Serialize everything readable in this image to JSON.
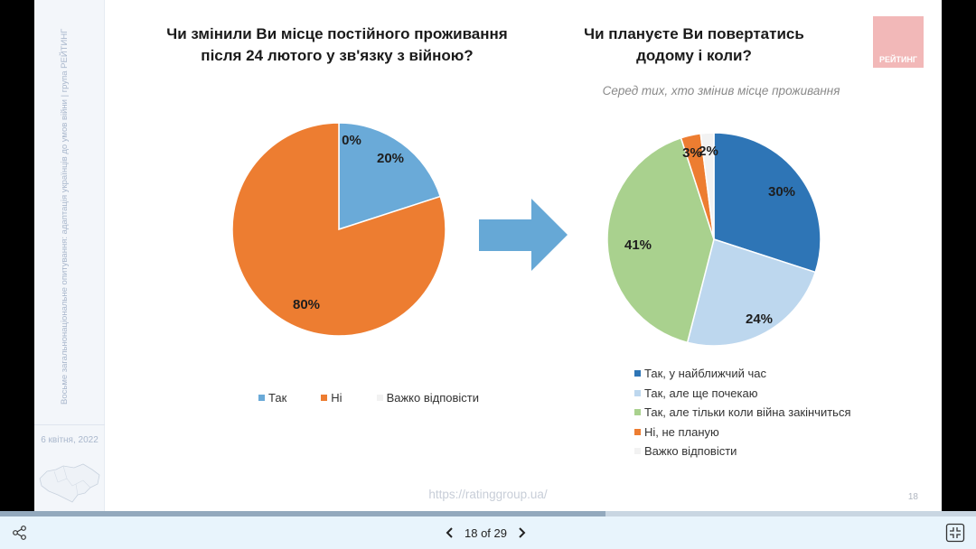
{
  "slide": {
    "sidebar": {
      "vertical_text": "Восьме загальнонаціональне опитування: адаптація українців до умов війни | група РЕЙТИНГ",
      "date": "6 квітня, 2022"
    },
    "logo_text": "РЕЙТИНГ",
    "left_title_line1": "Чи змінили Ви місце постійного проживання",
    "left_title_line2": "після  24 лютого у зв'язку з війною?",
    "right_title_line1": "Чи плануєте Ви повертатись",
    "right_title_line2": "додому і коли?",
    "right_subtitle": "Серед тих, хто змінив місце проживання",
    "footer_url": "https://ratinggroup.ua/",
    "page_number": "18"
  },
  "chart_data": [
    {
      "type": "pie",
      "title": "Чи змінили Ви місце постійного проживання після 24 лютого у зв'язку з війною?",
      "categories": [
        "Так",
        "Ні",
        "Важко відповісти"
      ],
      "values": [
        20,
        80,
        0
      ],
      "labels": [
        "20%",
        "80%",
        "0%"
      ],
      "colors": [
        "#6aaad8",
        "#ed7d31",
        "#f2f2f2"
      ],
      "legend_position": "bottom"
    },
    {
      "type": "pie",
      "title": "Чи плануєте Ви повертатись додому і коли?",
      "subtitle": "Серед тих, хто змінив місце проживання",
      "categories": [
        "Так, у найближчий час",
        "Так, але ще почекаю",
        "Так, але тільки коли війна закінчиться",
        "Ні, не планую",
        "Важко відповісти"
      ],
      "values": [
        30,
        24,
        41,
        3,
        2
      ],
      "labels": [
        "30%",
        "24%",
        "41%",
        "3%",
        "2%"
      ],
      "colors": [
        "#2e75b6",
        "#bdd7ee",
        "#a9d18e",
        "#ed7d31",
        "#f2f2f2"
      ],
      "legend_position": "bottom"
    }
  ],
  "legend_left": [
    {
      "label": "Так"
    },
    {
      "label": "Ні"
    },
    {
      "label": "Важко відповісти"
    }
  ],
  "legend_right": [
    {
      "label": "Так, у найближчий час"
    },
    {
      "label": "Так, але ще почекаю"
    },
    {
      "label": "Так, але тільки коли війна закінчиться"
    },
    {
      "label": "Ні, не планую"
    },
    {
      "label": "Важко відповісти"
    }
  ],
  "viewer": {
    "page_indicator": "18 of 29",
    "current_page": 18,
    "total_pages": 29,
    "progress_percent": 62,
    "icons": {
      "share": "share-icon",
      "prev": "chevron-left-icon",
      "next": "chevron-right-icon",
      "fit": "fit-screen-icon"
    }
  }
}
